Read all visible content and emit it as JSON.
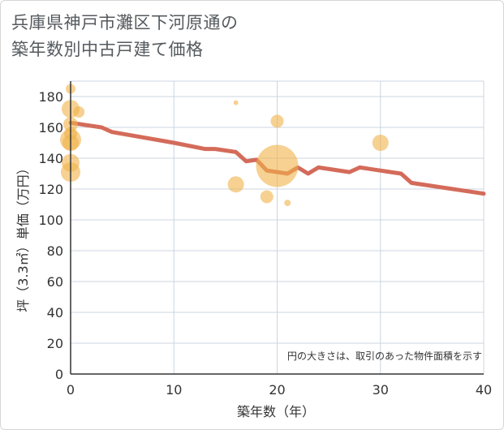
{
  "title_line1": "兵庫県神戸市灘区下河原通の",
  "title_line2": "築年数別中古戸建て価格",
  "colors": {
    "bubble": "#f0b24a",
    "line": "#d46b5a",
    "grid": "#ccd5e0",
    "axis": "#333333"
  },
  "chart_data": {
    "type": "scatter",
    "xlabel": "築年数（年）",
    "ylabel": "坪（3.3㎡）単価（万円）",
    "xlim": [
      0,
      40
    ],
    "ylim": [
      0,
      190
    ],
    "xticks": [
      0,
      10,
      20,
      30,
      40
    ],
    "yticks": [
      0,
      20,
      40,
      60,
      80,
      100,
      120,
      140,
      160,
      180
    ],
    "note": "円の大きさは、取引のあった物件面積を示す",
    "bubbles": [
      {
        "x": 0,
        "y": 185,
        "size": 6
      },
      {
        "x": 0,
        "y": 172,
        "size": 11
      },
      {
        "x": 0,
        "y": 162,
        "size": 9
      },
      {
        "x": 0,
        "y": 156,
        "size": 8
      },
      {
        "x": 0,
        "y": 152,
        "size": 13
      },
      {
        "x": 0,
        "y": 150,
        "size": 10
      },
      {
        "x": 0,
        "y": 137,
        "size": 11
      },
      {
        "x": 0,
        "y": 131,
        "size": 12
      },
      {
        "x": 0.8,
        "y": 170,
        "size": 7
      },
      {
        "x": 16,
        "y": 123,
        "size": 10
      },
      {
        "x": 16,
        "y": 176,
        "size": 3
      },
      {
        "x": 19,
        "y": 115,
        "size": 8
      },
      {
        "x": 20,
        "y": 164,
        "size": 8
      },
      {
        "x": 20,
        "y": 135,
        "size": 26
      },
      {
        "x": 21,
        "y": 111,
        "size": 4
      },
      {
        "x": 30,
        "y": 150,
        "size": 10
      }
    ],
    "trend": {
      "x": [
        0,
        3,
        4,
        10,
        13,
        14,
        16,
        17,
        18,
        19,
        21,
        22,
        23,
        24,
        27,
        28,
        29,
        31,
        32,
        33,
        40
      ],
      "y": [
        163,
        160,
        157,
        150,
        146,
        146,
        144,
        138,
        139,
        132,
        130,
        134,
        130,
        134,
        131,
        134,
        133,
        131,
        130,
        124,
        117
      ]
    }
  }
}
